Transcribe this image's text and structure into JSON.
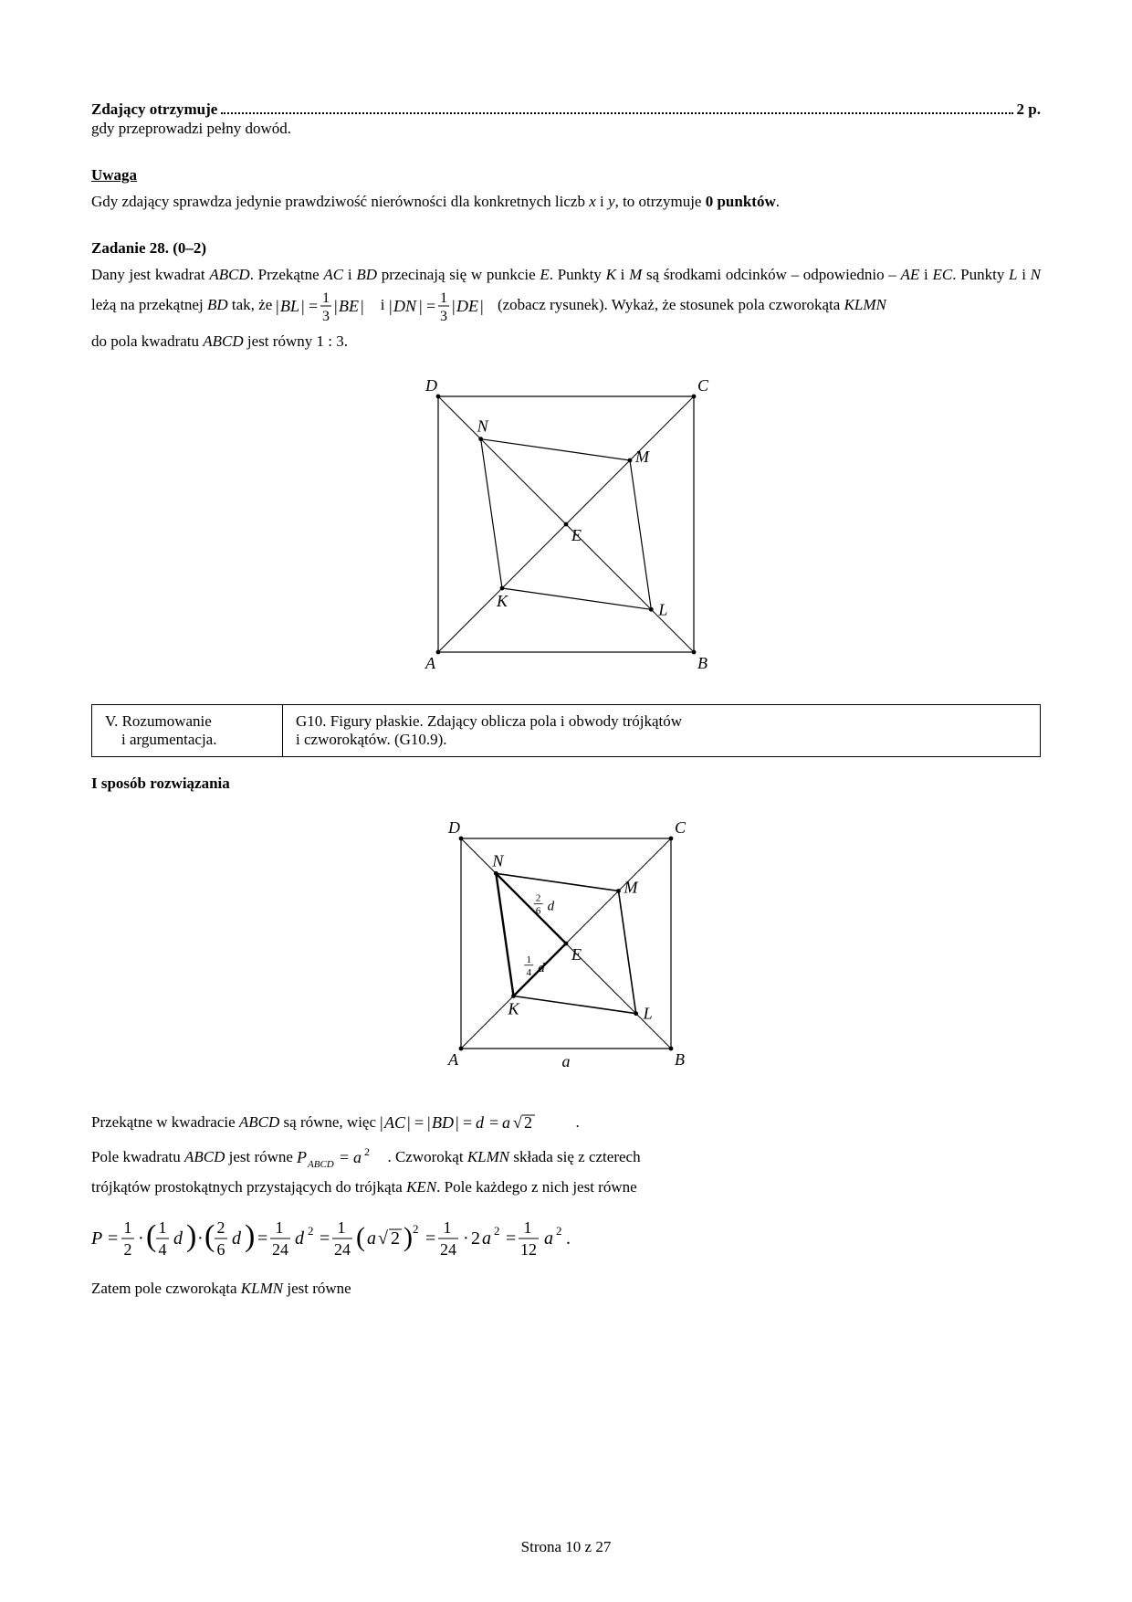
{
  "scoring": {
    "leader_left": "Zdający otrzymuje",
    "leader_right": "2 p.",
    "line1": "gdy przeprowadzi pełny dowód."
  },
  "note": {
    "heading": "Uwaga",
    "text_before": "Gdy zdający sprawdza jedynie prawdziwość nierówności dla konkretnych liczb ",
    "x": "x",
    "and": " i ",
    "y": "y",
    "text_after": ", to otrzymuje ",
    "zero": "0 punktów",
    "dot": "."
  },
  "task": {
    "heading": "Zadanie 28. (0–2)",
    "p1_a": "Dany jest kwadrat ",
    "ABCD1": "ABCD",
    "p1_b": ". Przekątne ",
    "AC": "AC",
    "and1": " i ",
    "BD": "BD",
    "p1_c": " przecinają się w punkcie ",
    "E": "E",
    "p1_d": ". Punkty ",
    "K": "K",
    "and2": " i ",
    "M": "M",
    "p1_e": " są środkami odcinków – odpowiednio – ",
    "AE": "AE",
    "and3": " i ",
    "EC": "EC",
    "p1_f": ". Punkty ",
    "L": "L",
    "and4": " i ",
    "N": "N",
    "p1_g": " leżą na przekątnej ",
    "BD2": "BD",
    "p1_h": " tak, że ",
    "eq_and": " i ",
    "p1_i": " (zobacz rysunek). Wykaż, że stosunek pola czworokąta ",
    "KLMN": "KLMN",
    "p2_a": "do pola kwadratu ",
    "ABCD2": "ABCD",
    "p2_b": " jest równy ",
    "ratio": "1 : 3",
    "dot": "."
  },
  "req_table": {
    "col1_l1": "V. Rozumowanie",
    "col1_l2": "i argumentacja.",
    "col2_l1": "G10. Figury płaskie. Zdający oblicza pola i obwody trójkątów",
    "col2_l2": "i czworokątów. (G10.9)."
  },
  "solution": {
    "heading": "I sposób rozwiązania",
    "line1_a": "Przekątne w kwadracie ",
    "ABCD": "ABCD",
    "line1_b": " są równe, więc ",
    "line1_dot": ".",
    "line2_a": "Pole kwadratu ",
    "ABCD2": "ABCD",
    "line2_b": " jest równe ",
    "line2_c": ". Czworokąt ",
    "KLMN": "KLMN",
    "line2_d": " składa się z czterech",
    "line3": "trójkątów prostokątnych przystających do trójkąta ",
    "KEN": "KEN",
    "line3_b": ". Pole każdego z nich jest równe",
    "line4": "Zatem pole czworokąta ",
    "KLMN2": "KLMN",
    "line4_b": " jest równe"
  },
  "figure1": {
    "size": 280,
    "pad": 30,
    "labels": {
      "A": "A",
      "B": "B",
      "C": "C",
      "D": "D",
      "E": "E",
      "K": "K",
      "L": "L",
      "M": "M",
      "N": "N"
    }
  },
  "figure2": {
    "size": 230,
    "pad": 30,
    "labels": {
      "A": "A",
      "B": "B",
      "C": "C",
      "D": "D",
      "E": "E",
      "K": "K",
      "L": "L",
      "M": "M",
      "N": "N",
      "a": "a"
    },
    "frac_26_num": "2",
    "frac_26_den": "6",
    "frac_26_d": "d",
    "frac_14_num": "1",
    "frac_14_den": "4",
    "frac_14_d": "d"
  },
  "footer": "Strona 10 z 27",
  "colors": {
    "stroke": "#000",
    "bg": "#fff"
  }
}
